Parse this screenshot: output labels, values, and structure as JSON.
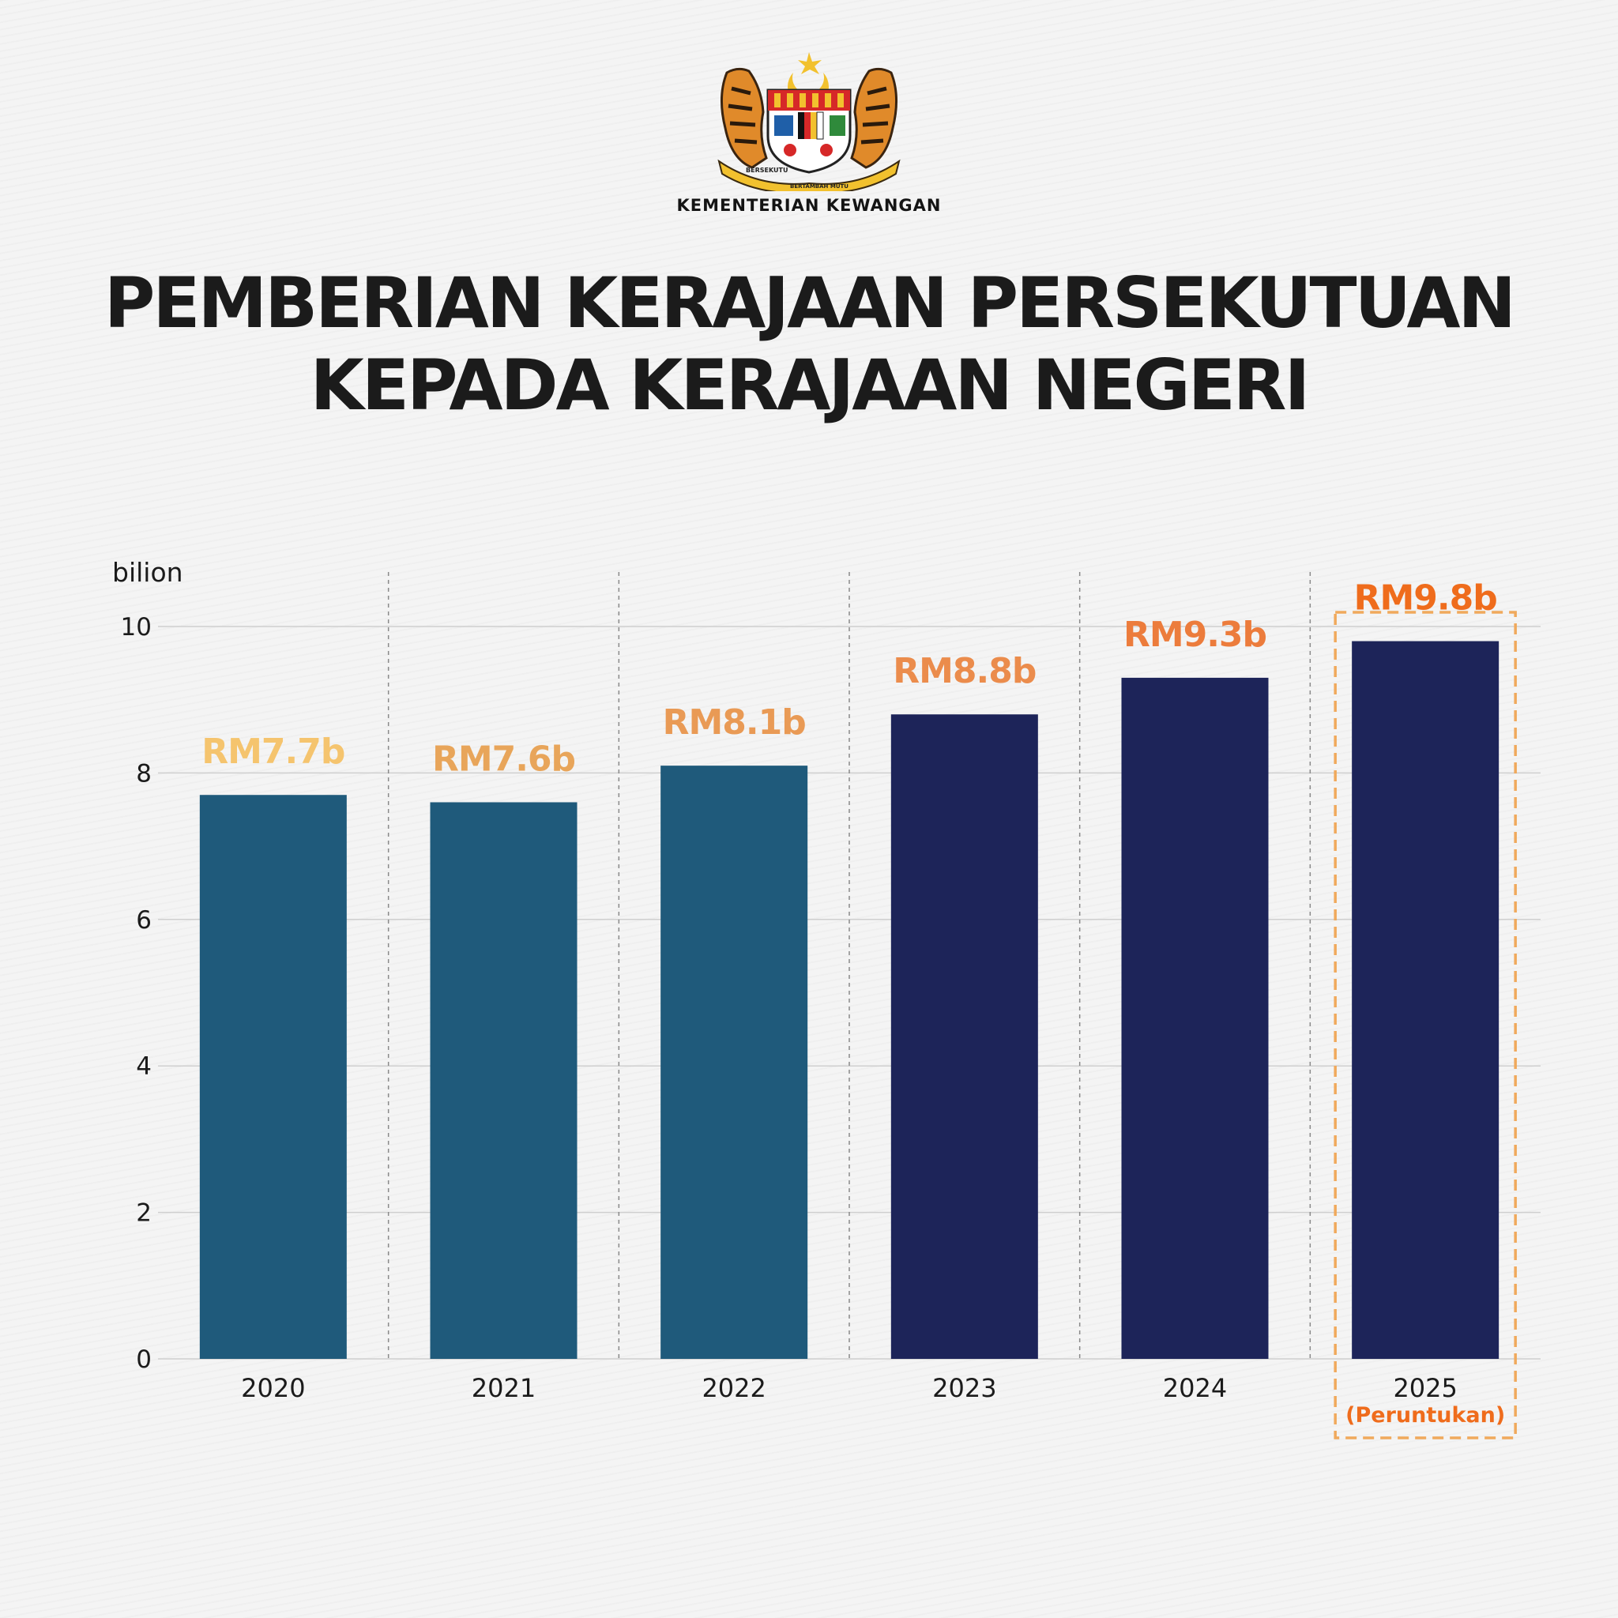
{
  "header": {
    "ministry": "KEMENTERIAN KEWANGAN",
    "crest_motto_left": "BERSEKUTU",
    "crest_motto_center": "BERTAMBAH MUTU",
    "title_line1": "PEMBERIAN KERAJAAN PERSEKUTUAN",
    "title_line2": "KEPADA KERAJAAN NEGERI"
  },
  "colors": {
    "bar_teal": "#1f5a7b",
    "bar_navy": "#1d2459",
    "highlight_orange": "#ef6c1c",
    "highlight_border": "#f0a95c"
  },
  "chart_data": {
    "type": "bar",
    "categories": [
      "2020",
      "2021",
      "2022",
      "2023",
      "2024",
      "2025"
    ],
    "values": [
      7.7,
      7.6,
      8.1,
      8.8,
      9.3,
      9.8
    ],
    "data_labels": [
      "RM7.7b",
      "RM7.6b",
      "RM8.1b",
      "RM8.8b",
      "RM9.3b",
      "RM9.8b"
    ],
    "label_colors": [
      "#f5c46e",
      "#e8a55a",
      "#e99a55",
      "#eb8c4c",
      "#ec7c3c",
      "#ef6c1c"
    ],
    "bar_colors": [
      "#1f5a7b",
      "#1f5a7b",
      "#1f5a7b",
      "#1d2459",
      "#1d2459",
      "#1d2459"
    ],
    "highlight_category": "2025",
    "highlight_note": "(Peruntukan)",
    "ylabel": "bilion",
    "ylim": [
      0,
      10
    ],
    "yticks": [
      0,
      2,
      4,
      6,
      8,
      10
    ],
    "grid": true
  }
}
